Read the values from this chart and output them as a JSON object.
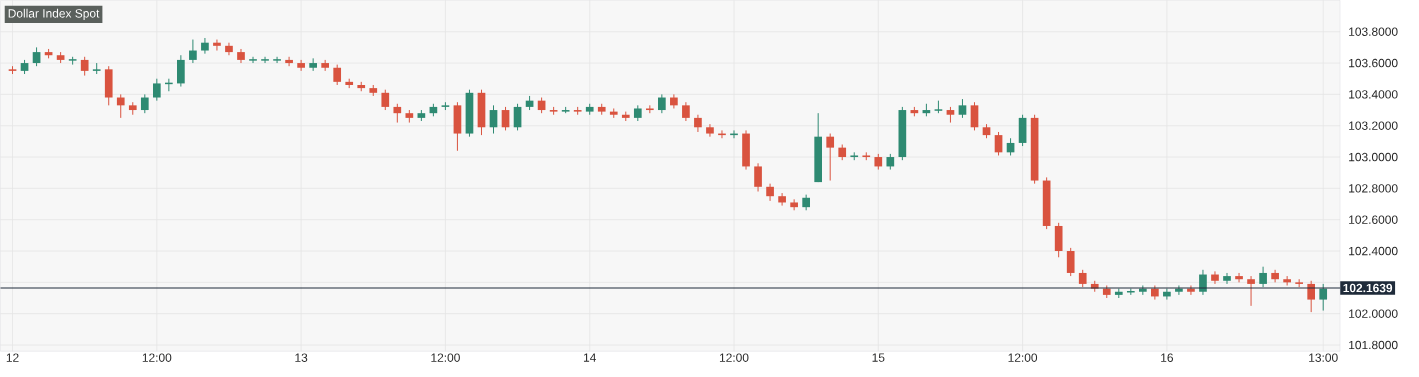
{
  "chart_data": {
    "type": "candlestick",
    "title": "Dollar Index Spot",
    "categories": [
      "12",
      null,
      null,
      null,
      null,
      null,
      null,
      null,
      null,
      null,
      null,
      null,
      "12:00",
      null,
      null,
      null,
      null,
      null,
      null,
      null,
      null,
      null,
      null,
      null,
      "13",
      null,
      null,
      null,
      null,
      null,
      null,
      null,
      null,
      null,
      null,
      null,
      "12:00",
      null,
      null,
      null,
      null,
      null,
      null,
      null,
      null,
      null,
      null,
      null,
      "14",
      null,
      null,
      null,
      null,
      null,
      null,
      null,
      null,
      null,
      null,
      null,
      "12:00",
      null,
      null,
      null,
      null,
      null,
      null,
      null,
      null,
      null,
      null,
      null,
      "15",
      null,
      null,
      null,
      null,
      null,
      null,
      null,
      null,
      null,
      null,
      null,
      "12:00",
      null,
      null,
      null,
      null,
      null,
      null,
      null,
      null,
      null,
      null,
      null,
      "16",
      null,
      null,
      null,
      null,
      null,
      null,
      null,
      null,
      null,
      null,
      null,
      null,
      "13:00"
    ],
    "ohlc": [
      [
        103.56,
        103.58,
        103.53,
        103.55
      ],
      [
        103.55,
        103.62,
        103.53,
        103.6
      ],
      [
        103.6,
        103.7,
        103.58,
        103.67
      ],
      [
        103.67,
        103.69,
        103.63,
        103.65
      ],
      [
        103.65,
        103.67,
        103.6,
        103.62
      ],
      [
        103.62,
        103.64,
        103.59,
        103.62
      ],
      [
        103.62,
        103.64,
        103.52,
        103.55
      ],
      [
        103.55,
        103.6,
        103.53,
        103.56
      ],
      [
        103.56,
        103.58,
        103.33,
        103.38
      ],
      [
        103.38,
        103.4,
        103.25,
        103.33
      ],
      [
        103.33,
        103.35,
        103.27,
        103.3
      ],
      [
        103.3,
        103.4,
        103.28,
        103.38
      ],
      [
        103.38,
        103.5,
        103.36,
        103.47
      ],
      [
        103.47,
        103.5,
        103.42,
        103.47
      ],
      [
        103.47,
        103.65,
        103.45,
        103.62
      ],
      [
        103.62,
        103.75,
        103.6,
        103.68
      ],
      [
        103.68,
        103.76,
        103.66,
        103.73
      ],
      [
        103.73,
        103.75,
        103.68,
        103.71
      ],
      [
        103.71,
        103.73,
        103.65,
        103.67
      ],
      [
        103.67,
        103.69,
        103.6,
        103.62
      ],
      [
        103.62,
        103.64,
        103.6,
        103.62
      ],
      [
        103.62,
        103.64,
        103.6,
        103.62
      ],
      [
        103.62,
        103.64,
        103.6,
        103.62
      ],
      [
        103.62,
        103.64,
        103.58,
        103.6
      ],
      [
        103.6,
        103.62,
        103.55,
        103.57
      ],
      [
        103.57,
        103.63,
        103.55,
        103.6
      ],
      [
        103.6,
        103.62,
        103.55,
        103.57
      ],
      [
        103.57,
        103.59,
        103.46,
        103.48
      ],
      [
        103.48,
        103.5,
        103.44,
        103.46
      ],
      [
        103.46,
        103.48,
        103.42,
        103.44
      ],
      [
        103.44,
        103.46,
        103.39,
        103.41
      ],
      [
        103.41,
        103.43,
        103.3,
        103.32
      ],
      [
        103.32,
        103.34,
        103.22,
        103.28
      ],
      [
        103.28,
        103.3,
        103.22,
        103.25
      ],
      [
        103.25,
        103.3,
        103.23,
        103.28
      ],
      [
        103.28,
        103.34,
        103.26,
        103.32
      ],
      [
        103.32,
        103.35,
        103.3,
        103.33
      ],
      [
        103.33,
        103.35,
        103.04,
        103.15
      ],
      [
        103.15,
        103.43,
        103.13,
        103.41
      ],
      [
        103.41,
        103.43,
        103.14,
        103.19
      ],
      [
        103.19,
        103.33,
        103.15,
        103.3
      ],
      [
        103.3,
        103.32,
        103.17,
        103.19
      ],
      [
        103.19,
        103.34,
        103.17,
        103.32
      ],
      [
        103.32,
        103.39,
        103.3,
        103.36
      ],
      [
        103.36,
        103.38,
        103.28,
        103.3
      ],
      [
        103.3,
        103.32,
        103.27,
        103.29
      ],
      [
        103.29,
        103.32,
        103.28,
        103.3
      ],
      [
        103.3,
        103.32,
        103.27,
        103.29
      ],
      [
        103.29,
        103.34,
        103.27,
        103.32
      ],
      [
        103.32,
        103.34,
        103.27,
        103.29
      ],
      [
        103.29,
        103.31,
        103.25,
        103.27
      ],
      [
        103.27,
        103.29,
        103.23,
        103.25
      ],
      [
        103.25,
        103.33,
        103.23,
        103.31
      ],
      [
        103.31,
        103.33,
        103.28,
        103.3
      ],
      [
        103.3,
        103.4,
        103.28,
        103.38
      ],
      [
        103.38,
        103.4,
        103.31,
        103.33
      ],
      [
        103.33,
        103.35,
        103.23,
        103.25
      ],
      [
        103.25,
        103.27,
        103.16,
        103.19
      ],
      [
        103.19,
        103.21,
        103.13,
        103.15
      ],
      [
        103.15,
        103.17,
        103.12,
        103.14
      ],
      [
        103.14,
        103.17,
        103.12,
        103.15
      ],
      [
        103.15,
        103.17,
        102.92,
        102.94
      ],
      [
        102.94,
        102.96,
        102.78,
        102.81
      ],
      [
        102.81,
        102.83,
        102.72,
        102.75
      ],
      [
        102.75,
        102.77,
        102.69,
        102.71
      ],
      [
        102.71,
        102.73,
        102.66,
        102.68
      ],
      [
        102.68,
        102.76,
        102.66,
        102.74
      ],
      [
        102.84,
        103.28,
        102.84,
        103.13
      ],
      [
        103.13,
        103.15,
        102.85,
        103.06
      ],
      [
        103.06,
        103.08,
        102.98,
        103.0
      ],
      [
        103.0,
        103.03,
        102.98,
        103.01
      ],
      [
        103.01,
        103.03,
        102.98,
        103.0
      ],
      [
        103.0,
        103.02,
        102.92,
        102.94
      ],
      [
        102.94,
        103.02,
        102.92,
        103.0
      ],
      [
        103.0,
        103.32,
        102.98,
        103.3
      ],
      [
        103.3,
        103.32,
        103.26,
        103.28
      ],
      [
        103.28,
        103.34,
        103.26,
        103.3
      ],
      [
        103.3,
        103.36,
        103.28,
        103.3
      ],
      [
        103.3,
        103.32,
        103.22,
        103.27
      ],
      [
        103.27,
        103.37,
        103.25,
        103.33
      ],
      [
        103.33,
        103.35,
        103.17,
        103.19
      ],
      [
        103.19,
        103.21,
        103.12,
        103.14
      ],
      [
        103.14,
        103.16,
        103.01,
        103.03
      ],
      [
        103.03,
        103.12,
        103.01,
        103.09
      ],
      [
        103.09,
        103.27,
        103.07,
        103.25
      ],
      [
        103.25,
        103.27,
        102.83,
        102.85
      ],
      [
        102.85,
        102.87,
        102.54,
        102.56
      ],
      [
        102.56,
        102.58,
        102.36,
        102.4
      ],
      [
        102.4,
        102.42,
        102.24,
        102.26
      ],
      [
        102.26,
        102.28,
        102.17,
        102.19
      ],
      [
        102.19,
        102.21,
        102.14,
        102.16
      ],
      [
        102.16,
        102.18,
        102.1,
        102.12
      ],
      [
        102.12,
        102.16,
        102.1,
        102.14
      ],
      [
        102.14,
        102.16,
        102.12,
        102.14
      ],
      [
        102.14,
        102.18,
        102.12,
        102.16
      ],
      [
        102.16,
        102.18,
        102.09,
        102.11
      ],
      [
        102.11,
        102.16,
        102.09,
        102.14
      ],
      [
        102.14,
        102.18,
        102.12,
        102.16
      ],
      [
        102.16,
        102.18,
        102.12,
        102.14
      ],
      [
        102.14,
        102.28,
        102.12,
        102.25
      ],
      [
        102.25,
        102.27,
        102.19,
        102.21
      ],
      [
        102.21,
        102.26,
        102.19,
        102.24
      ],
      [
        102.24,
        102.26,
        102.2,
        102.22
      ],
      [
        102.22,
        102.24,
        102.05,
        102.19
      ],
      [
        102.19,
        102.3,
        102.17,
        102.26
      ],
      [
        102.26,
        102.28,
        102.2,
        102.22
      ],
      [
        102.22,
        102.24,
        102.18,
        102.2
      ],
      [
        102.2,
        102.22,
        102.17,
        102.19
      ],
      [
        102.19,
        102.21,
        102.01,
        102.09
      ],
      [
        102.09,
        102.19,
        102.02,
        102.16
      ]
    ],
    "colors": [
      "#d9533f",
      "#2e8a72",
      "#2e8a72",
      "#d9533f",
      "#d9533f",
      "#2e8a72",
      "#d9533f",
      "#2e8a72",
      "#d9533f",
      "#d9533f",
      "#d9533f",
      "#2e8a72",
      "#2e8a72",
      "#2e8a72",
      "#2e8a72",
      "#2e8a72",
      "#2e8a72",
      "#d9533f",
      "#d9533f",
      "#d9533f",
      "#2e8a72",
      "#2e8a72",
      "#2e8a72",
      "#d9533f",
      "#d9533f",
      "#2e8a72",
      "#d9533f",
      "#d9533f",
      "#d9533f",
      "#d9533f",
      "#d9533f",
      "#d9533f",
      "#d9533f",
      "#d9533f",
      "#2e8a72",
      "#2e8a72",
      "#2e8a72",
      "#d9533f",
      "#2e8a72",
      "#d9533f",
      "#2e8a72",
      "#d9533f",
      "#2e8a72",
      "#2e8a72",
      "#d9533f",
      "#d9533f",
      "#2e8a72",
      "#d9533f",
      "#2e8a72",
      "#d9533f",
      "#d9533f",
      "#d9533f",
      "#2e8a72",
      "#d9533f",
      "#2e8a72",
      "#d9533f",
      "#d9533f",
      "#d9533f",
      "#d9533f",
      "#d9533f",
      "#2e8a72",
      "#d9533f",
      "#d9533f",
      "#d9533f",
      "#d9533f",
      "#d9533f",
      "#2e8a72",
      "#2e8a72",
      "#d9533f",
      "#d9533f",
      "#2e8a72",
      "#d9533f",
      "#d9533f",
      "#2e8a72",
      "#2e8a72",
      "#d9533f",
      "#2e8a72",
      "#2e8a72",
      "#d9533f",
      "#2e8a72",
      "#d9533f",
      "#d9533f",
      "#d9533f",
      "#2e8a72",
      "#2e8a72",
      "#d9533f",
      "#d9533f",
      "#d9533f",
      "#d9533f",
      "#d9533f",
      "#d9533f",
      "#d9533f",
      "#2e8a72",
      "#2e8a72",
      "#2e8a72",
      "#d9533f",
      "#2e8a72",
      "#2e8a72",
      "#d9533f",
      "#2e8a72",
      "#d9533f",
      "#2e8a72",
      "#d9533f",
      "#d9533f",
      "#2e8a72",
      "#d9533f",
      "#d9533f",
      "#d9533f",
      "#d9533f",
      "#2e8a72"
    ],
    "ylim": [
      101.76,
      104.0
    ],
    "yticks": [
      {
        "value": 101.8,
        "label": "101.8000"
      },
      {
        "value": 102.0,
        "label": "102.0000"
      },
      {
        "value": 102.2,
        "label": null
      },
      {
        "value": 102.4,
        "label": "102.4000"
      },
      {
        "value": 102.6,
        "label": "102.6000"
      },
      {
        "value": 102.8,
        "label": "102.8000"
      },
      {
        "value": 103.0,
        "label": "103.0000"
      },
      {
        "value": 103.2,
        "label": "103.2000"
      },
      {
        "value": 103.4,
        "label": "103.4000"
      },
      {
        "value": 103.6,
        "label": "103.6000"
      },
      {
        "value": 103.8,
        "label": "103.8000"
      }
    ],
    "ref_lines": [
      {
        "axis": "y",
        "value": 102.1639,
        "label": "102.1639",
        "color": "#1f2b3a"
      }
    ],
    "grid": true
  }
}
